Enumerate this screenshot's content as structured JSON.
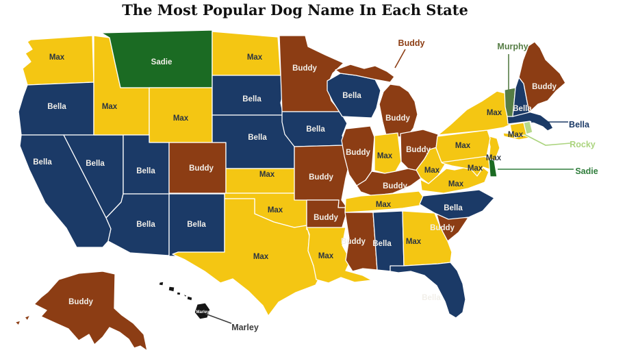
{
  "title": "The Most Popular Dog Name In Each State",
  "palette": {
    "yellow": "#F4C613",
    "navy": "#1B3A67",
    "brown": "#8C3D14",
    "dark_green": "#1B6B23",
    "medium_green": "#567D45",
    "light_green": "#B7D98C",
    "hawaii_black": "#161616",
    "label_on_dark": "#F2EFE9",
    "label_on_light": "#2B3440",
    "callout_sadie": "#2F7D3B",
    "callout_rocky": "#ABD47E",
    "callout_marley": "#3C3C3C",
    "background": "#FFFFFF",
    "title_color": "#111111"
  },
  "states": [
    {
      "abbr": "WA",
      "dog": "Max",
      "fill": "yellow"
    },
    {
      "abbr": "OR",
      "dog": "Bella",
      "fill": "navy"
    },
    {
      "abbr": "CA",
      "dog": "Bella",
      "fill": "navy"
    },
    {
      "abbr": "NV",
      "dog": "Bella",
      "fill": "navy"
    },
    {
      "abbr": "ID",
      "dog": "Max",
      "fill": "yellow"
    },
    {
      "abbr": "MT",
      "dog": "Sadie",
      "fill": "dark_green"
    },
    {
      "abbr": "WY",
      "dog": "Max",
      "fill": "yellow"
    },
    {
      "abbr": "UT",
      "dog": "Bella",
      "fill": "navy"
    },
    {
      "abbr": "CO",
      "dog": "Buddy",
      "fill": "brown"
    },
    {
      "abbr": "AZ",
      "dog": "Bella",
      "fill": "navy"
    },
    {
      "abbr": "NM",
      "dog": "Bella",
      "fill": "navy"
    },
    {
      "abbr": "ND",
      "dog": "Max",
      "fill": "yellow"
    },
    {
      "abbr": "SD",
      "dog": "Bella",
      "fill": "navy"
    },
    {
      "abbr": "NE",
      "dog": "Bella",
      "fill": "navy"
    },
    {
      "abbr": "KS",
      "dog": "Max",
      "fill": "yellow"
    },
    {
      "abbr": "OK",
      "dog": "Max",
      "fill": "yellow"
    },
    {
      "abbr": "TX",
      "dog": "Max",
      "fill": "yellow"
    },
    {
      "abbr": "MN",
      "dog": "Buddy",
      "fill": "brown"
    },
    {
      "abbr": "IA",
      "dog": "Bella",
      "fill": "navy"
    },
    {
      "abbr": "MO",
      "dog": "Buddy",
      "fill": "brown"
    },
    {
      "abbr": "AR",
      "dog": "Buddy",
      "fill": "brown"
    },
    {
      "abbr": "LA",
      "dog": "Max",
      "fill": "yellow"
    },
    {
      "abbr": "WI",
      "dog": "Bella",
      "fill": "navy"
    },
    {
      "abbr": "MI",
      "dog": "Buddy",
      "fill": "brown"
    },
    {
      "abbr": "IL",
      "dog": "Buddy",
      "fill": "brown"
    },
    {
      "abbr": "IN",
      "dog": "Max",
      "fill": "yellow"
    },
    {
      "abbr": "OH",
      "dog": "Buddy",
      "fill": "brown"
    },
    {
      "abbr": "KY",
      "dog": "Buddy",
      "fill": "brown"
    },
    {
      "abbr": "TN",
      "dog": "Max",
      "fill": "yellow"
    },
    {
      "abbr": "MS",
      "dog": "Buddy",
      "fill": "brown"
    },
    {
      "abbr": "AL",
      "dog": "Bella",
      "fill": "navy"
    },
    {
      "abbr": "GA",
      "dog": "Max",
      "fill": "yellow"
    },
    {
      "abbr": "SC",
      "dog": "Buddy",
      "fill": "brown"
    },
    {
      "abbr": "NC",
      "dog": "Bella",
      "fill": "navy"
    },
    {
      "abbr": "FL",
      "dog": "Bella",
      "fill": "navy"
    },
    {
      "abbr": "VA",
      "dog": "Max",
      "fill": "yellow"
    },
    {
      "abbr": "WV",
      "dog": "Max",
      "fill": "yellow"
    },
    {
      "abbr": "MD",
      "dog": "Max",
      "fill": "yellow"
    },
    {
      "abbr": "DE",
      "dog": "Sadie",
      "fill": "dark_green"
    },
    {
      "abbr": "NJ",
      "dog": "Max",
      "fill": "yellow"
    },
    {
      "abbr": "PA",
      "dog": "Max",
      "fill": "yellow"
    },
    {
      "abbr": "NY",
      "dog": "Max",
      "fill": "yellow"
    },
    {
      "abbr": "CT",
      "dog": "Max",
      "fill": "yellow"
    },
    {
      "abbr": "RI",
      "dog": "Rocky",
      "fill": "light_green"
    },
    {
      "abbr": "MA",
      "dog": "Bella",
      "fill": "navy"
    },
    {
      "abbr": "VT",
      "dog": "Murphy",
      "fill": "medium_green"
    },
    {
      "abbr": "NH",
      "dog": "Bella",
      "fill": "navy"
    },
    {
      "abbr": "ME",
      "dog": "Buddy",
      "fill": "brown"
    },
    {
      "abbr": "AK",
      "dog": "Buddy",
      "fill": "brown"
    },
    {
      "abbr": "HI",
      "dog": "Marley",
      "fill": "hawaii_black"
    }
  ],
  "callouts": [
    {
      "target": "MI",
      "dog": "Buddy",
      "color": "brown"
    },
    {
      "target": "VT",
      "dog": "Murphy",
      "color": "medium_green"
    },
    {
      "target": "MA",
      "dog": "Bella",
      "color": "navy"
    },
    {
      "target": "RI",
      "dog": "Rocky",
      "color": "callout_rocky"
    },
    {
      "target": "DE",
      "dog": "Sadie",
      "color": "callout_sadie"
    },
    {
      "target": "HI",
      "dog": "Marley",
      "color": "callout_marley"
    }
  ]
}
